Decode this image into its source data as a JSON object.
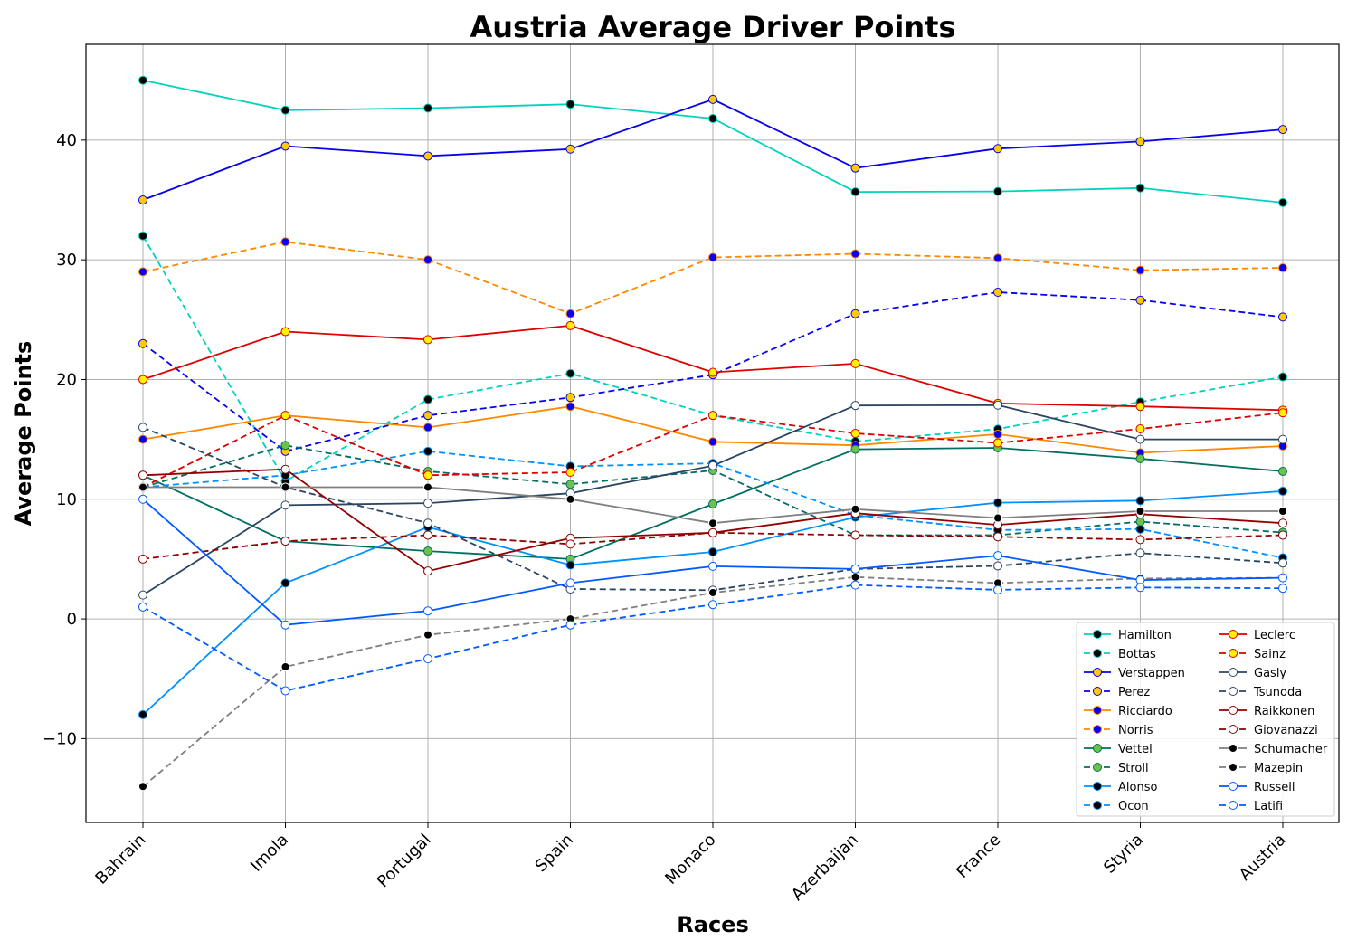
{
  "chart_data": {
    "type": "line",
    "title": "Austria Average Driver Points",
    "xlabel": "Races",
    "ylabel": "Average Points",
    "categories": [
      "Bahrain",
      "Imola",
      "Portugal",
      "Spain",
      "Monaco",
      "Azerbaijan",
      "France",
      "Styria",
      "Austria"
    ],
    "ylim": [
      -17,
      48
    ],
    "yticks": [
      -10,
      0,
      10,
      20,
      30,
      40
    ],
    "ytick_labels": [
      "−10",
      "0",
      "10",
      "20",
      "30",
      "40"
    ],
    "grid": true,
    "legend_placement": "lower-right",
    "series": [
      {
        "name": "Hamilton",
        "color": "#00d2be",
        "dash": "solid",
        "marker_face": "#000000",
        "marker_edge": "#00d2be",
        "values": [
          45,
          42.5,
          42.67,
          43,
          41.8,
          35.67,
          35.71,
          36,
          34.78
        ]
      },
      {
        "name": "Bottas",
        "color": "#00d2be",
        "dash": "dashed",
        "marker_face": "#000000",
        "marker_edge": "#00d2be",
        "values": [
          32,
          11.5,
          18.33,
          20.5,
          17,
          14.83,
          15.86,
          18.13,
          20.22
        ]
      },
      {
        "name": "Verstappen",
        "color": "#0600ef",
        "dash": "solid",
        "marker_face": "#ffc906",
        "marker_edge": "#0600ef",
        "values": [
          35,
          39.5,
          38.67,
          39.25,
          43.4,
          37.67,
          39.29,
          39.88,
          40.89
        ]
      },
      {
        "name": "Perez",
        "color": "#0600ef",
        "dash": "dashed",
        "marker_face": "#ffc906",
        "marker_edge": "#0600ef",
        "values": [
          23,
          14,
          17,
          18.5,
          20.4,
          25.5,
          27.29,
          26.63,
          25.22
        ]
      },
      {
        "name": "Ricciardo",
        "color": "#ff8700",
        "dash": "solid",
        "marker_face": "#0600ef",
        "marker_edge": "#ff8700",
        "values": [
          15,
          17,
          16,
          17.75,
          14.8,
          14.5,
          15.43,
          13.88,
          14.44
        ]
      },
      {
        "name": "Norris",
        "color": "#ff8700",
        "dash": "dashed",
        "marker_face": "#0600ef",
        "marker_edge": "#ff8700",
        "values": [
          29,
          31.5,
          30,
          25.5,
          30.2,
          30.5,
          30.14,
          29.13,
          29.33
        ]
      },
      {
        "name": "Vettel",
        "color": "#006f62",
        "dash": "solid",
        "marker_face": "#6cc24a",
        "marker_edge": "#006f62",
        "values": [
          12,
          6.5,
          5.67,
          5,
          9.6,
          14.17,
          14.29,
          13.38,
          12.33
        ]
      },
      {
        "name": "Stroll",
        "color": "#006f62",
        "dash": "dashed",
        "marker_face": "#6cc24a",
        "marker_edge": "#006f62",
        "values": [
          11,
          14.5,
          12.33,
          11.25,
          12.4,
          7,
          7,
          8.13,
          7.22
        ]
      },
      {
        "name": "Alonso",
        "color": "#0090ff",
        "dash": "solid",
        "marker_face": "#000000",
        "marker_edge": "#0090ff",
        "values": [
          -8,
          3,
          7.67,
          4.5,
          5.6,
          8.5,
          9.71,
          9.88,
          10.67
        ]
      },
      {
        "name": "Ocon",
        "color": "#0090ff",
        "dash": "dashed",
        "marker_face": "#000000",
        "marker_edge": "#0090ff",
        "values": [
          11,
          12,
          14,
          12.75,
          13,
          8.67,
          7.43,
          7.5,
          5.11
        ]
      },
      {
        "name": "Leclerc",
        "color": "#dc0000",
        "dash": "solid",
        "marker_face": "#fff200",
        "marker_edge": "#dc0000",
        "values": [
          20,
          24,
          23.33,
          24.5,
          20.6,
          21.33,
          18,
          17.75,
          17.44
        ]
      },
      {
        "name": "Sainz",
        "color": "#dc0000",
        "dash": "dashed",
        "marker_face": "#fff200",
        "marker_edge": "#dc0000",
        "values": [
          11,
          17,
          12,
          12.25,
          17,
          15.5,
          14.71,
          15.88,
          17.22
        ]
      },
      {
        "name": "Gasly",
        "color": "#2b4562",
        "dash": "solid",
        "marker_face": "#ffffff",
        "marker_edge": "#2b4562",
        "values": [
          2,
          9.5,
          9.67,
          10.5,
          12.8,
          17.83,
          17.86,
          15,
          15
        ]
      },
      {
        "name": "Tsunoda",
        "color": "#2b4562",
        "dash": "dashed",
        "marker_face": "#ffffff",
        "marker_edge": "#2b4562",
        "values": [
          16,
          11,
          8,
          2.5,
          2.4,
          4.17,
          4.43,
          5.5,
          4.67
        ]
      },
      {
        "name": "Raikkonen",
        "color": "#900000",
        "dash": "solid",
        "marker_face": "#ffffff",
        "marker_edge": "#900000",
        "values": [
          12,
          12.5,
          4,
          6.75,
          7.2,
          8.83,
          7.86,
          8.75,
          8
        ]
      },
      {
        "name": "Giovanazzi",
        "color": "#900000",
        "dash": "dashed",
        "marker_face": "#ffffff",
        "marker_edge": "#900000",
        "values": [
          5,
          6.5,
          7,
          6.25,
          7.2,
          7,
          6.86,
          6.63,
          7
        ]
      },
      {
        "name": "Schumacher",
        "color": "#7f7f7f",
        "dash": "solid",
        "marker_face": "#000000",
        "marker_edge": "#ffffff",
        "values": [
          11,
          11,
          11,
          10,
          8,
          9.17,
          8.43,
          9,
          9
        ]
      },
      {
        "name": "Mazepin",
        "color": "#7f7f7f",
        "dash": "dashed",
        "marker_face": "#000000",
        "marker_edge": "#ffffff",
        "values": [
          -14,
          -4,
          -1.33,
          0,
          2.2,
          3.5,
          3,
          3.38,
          3.44
        ]
      },
      {
        "name": "Russell",
        "color": "#005aff",
        "dash": "solid",
        "marker_face": "#ffffff",
        "marker_edge": "#005aff",
        "values": [
          10,
          -0.5,
          0.67,
          3,
          4.4,
          4.17,
          5.29,
          3.25,
          3.44
        ]
      },
      {
        "name": "Latifi",
        "color": "#005aff",
        "dash": "dashed",
        "marker_face": "#ffffff",
        "marker_edge": "#005aff",
        "values": [
          1,
          -6,
          -3.33,
          -0.5,
          1.2,
          2.83,
          2.43,
          2.63,
          2.56
        ]
      }
    ]
  }
}
